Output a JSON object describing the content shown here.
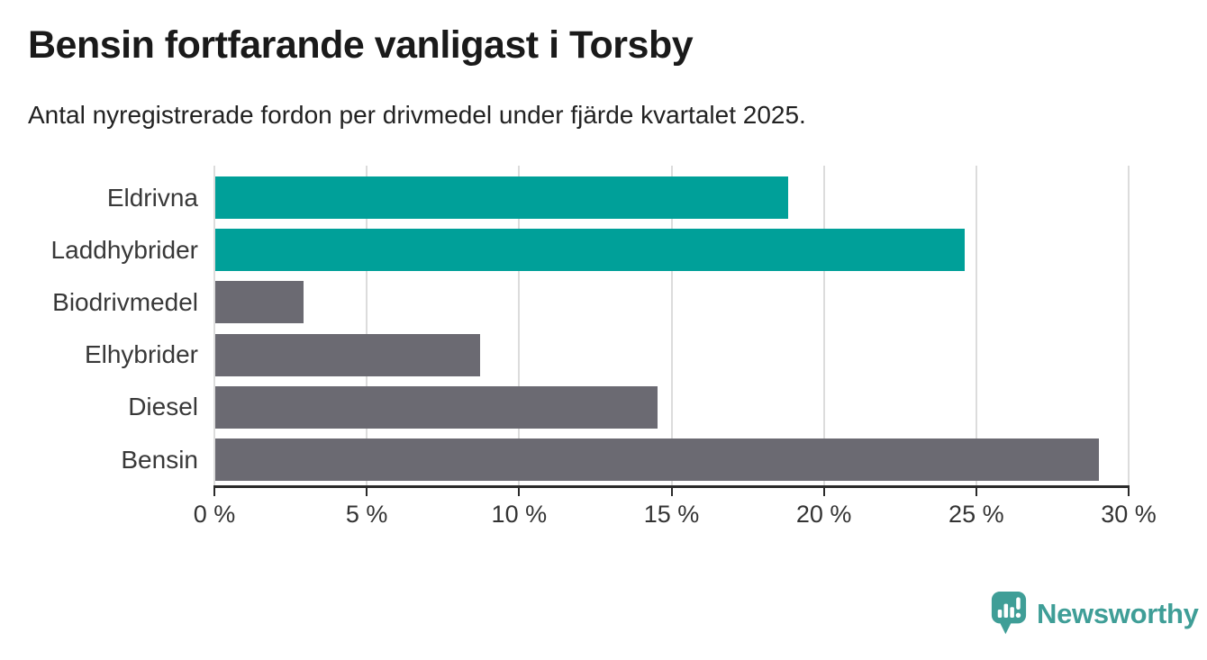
{
  "header": {
    "title": "Bensin fortfarande vanligast i Torsby",
    "subtitle": "Antal nyregistrerade fordon per drivmedel under fjärde kvartalet 2025."
  },
  "chart_data": {
    "type": "bar",
    "orientation": "horizontal",
    "title": "Bensin fortfarande vanligast i Torsby",
    "subtitle": "Antal nyregistrerade fordon per drivmedel under fjärde kvartalet 2025.",
    "categories": [
      "Eldrivna",
      "Laddhybrider",
      "Biodrivmedel",
      "Elhybrider",
      "Diesel",
      "Bensin"
    ],
    "values": [
      18.8,
      24.6,
      2.9,
      8.7,
      14.5,
      29.0
    ],
    "unit": "%",
    "xlabel": "",
    "ylabel": "",
    "xlim": [
      0,
      30
    ],
    "x_ticks": [
      0,
      5,
      10,
      15,
      20,
      25,
      30
    ],
    "x_tick_labels": [
      "0 %",
      "5 %",
      "10 %",
      "15 %",
      "20 %",
      "25 %",
      "30 %"
    ],
    "grid": true,
    "legend": "none",
    "bar_colors": [
      "#00a099",
      "#00a099",
      "#6b6a72",
      "#6b6a72",
      "#6b6a72",
      "#6b6a72"
    ]
  },
  "colors": {
    "accent_teal": "#00a099",
    "neutral_gray": "#6b6a72",
    "gridline": "#dcdcdc",
    "axis": "#2a2a2a",
    "text_dark": "#1a1a1a",
    "label_gray": "#383838"
  },
  "branding": {
    "logo_text": "Newsworthy",
    "logo_color": "#3f9e97",
    "icon_name": "newsworthy-bubble-chart-icon"
  }
}
